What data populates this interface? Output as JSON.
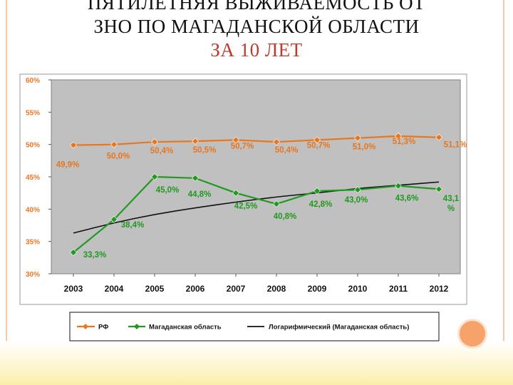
{
  "title": {
    "line1": "ПЯТИЛЕТНЯЯ ВЫЖИВАЕМОСТЬ ОТ",
    "line2": "ЗНО ПО МАГАДАНСКОЙ ОБЛАСТИ",
    "line3": "ЗА 10 ЛЕТ"
  },
  "colors": {
    "rf": "#e8761e",
    "magadan": "#1f9a1f",
    "trend": "#111111",
    "plot_bg": "#c0c0c0",
    "axis_tick": "#e87722"
  },
  "chart_data": {
    "type": "line",
    "categories": [
      "2003",
      "2004",
      "2005",
      "2006",
      "2007",
      "2008",
      "2009",
      "2010",
      "2011",
      "2012"
    ],
    "ylim": [
      30,
      60
    ],
    "yticks": [
      30,
      35,
      40,
      45,
      50,
      55,
      60
    ],
    "ytick_labels": [
      "30%",
      "35%",
      "40%",
      "45%",
      "50%",
      "55%",
      "60%"
    ],
    "grid": false,
    "legend_position": "bottom",
    "series": [
      {
        "name": "РФ",
        "key": "rf",
        "values": [
          49.9,
          50.0,
          50.4,
          50.5,
          50.7,
          50.4,
          50.7,
          51.0,
          51.3,
          51.1
        ],
        "labels": [
          "49,9%",
          "50,0%",
          "50,4%",
          "50,5%",
          "50,7%",
          "50,4%",
          "50,7%",
          "51,0%",
          "51,3%",
          "51,1%"
        ]
      },
      {
        "name": "Магаданская область",
        "key": "magadan",
        "values": [
          33.3,
          38.4,
          45.0,
          44.8,
          42.5,
          40.8,
          42.8,
          43.0,
          43.6,
          43.1
        ],
        "labels": [
          "33,3%",
          "38,4%",
          "45,0%",
          "44,8%",
          "42,5%",
          "40,8%",
          "42,8%",
          "43,0%",
          "43,6%",
          "43,1 %"
        ]
      },
      {
        "name": "Логарифмический (Магаданская область)",
        "key": "trend",
        "type": "logarithmic-trendline",
        "values": [
          36.3,
          37.9,
          39.2,
          40.2,
          41.1,
          41.9,
          42.5,
          43.2,
          43.7,
          44.2
        ]
      }
    ]
  }
}
